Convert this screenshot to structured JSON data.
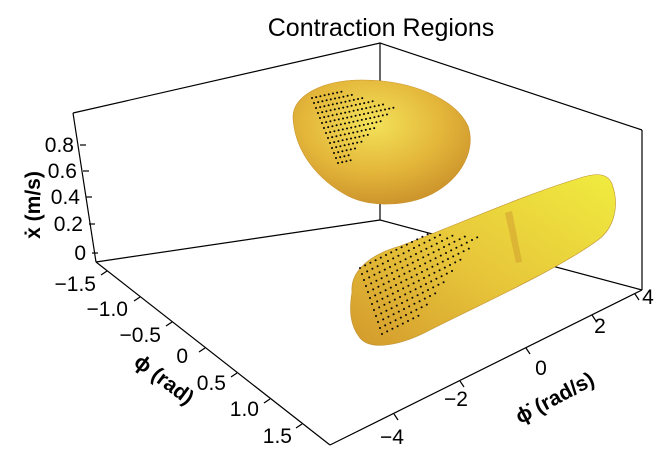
{
  "chart_data": {
    "type": "3d-surface",
    "title": "Contraction Regions",
    "axes": {
      "x": {
        "label": "ϕ (rad)",
        "ticks": [
          "−1.5",
          "−1.0",
          "−0.5",
          "0",
          "0.5",
          "1.0",
          "1.5"
        ],
        "range": [
          -1.5,
          1.5
        ]
      },
      "y": {
        "label": "ϕ̇ (rad/s)",
        "ticks": [
          "−4",
          "−2",
          "0",
          "2",
          "4"
        ],
        "range": [
          -4,
          4
        ]
      },
      "z": {
        "label": "ẋ (m/s)",
        "ticks": [
          "0",
          "0.2",
          "0.4",
          "0.6",
          "0.8"
        ],
        "range": [
          0,
          0.9
        ]
      }
    },
    "regions": [
      {
        "name": "",
        "center": {
          "phi": -0.6,
          "phidot": -3.2,
          "xdot": 0.62
        },
        "color": "#e8b83a"
      },
      {
        "name": "",
        "center": {
          "phi": 0.7,
          "phidot": 0.0,
          "xdot": 0.12
        },
        "color": "#e8c83a"
      }
    ],
    "surface_color": "#e6c13a",
    "box": true
  }
}
